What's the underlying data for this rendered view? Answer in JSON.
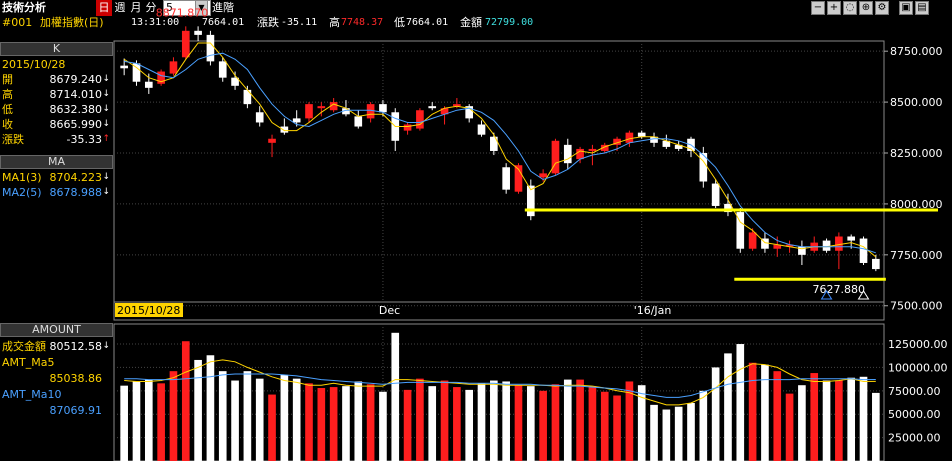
{
  "top": {
    "title": "技術分析",
    "periods": [
      "日",
      "週",
      "月",
      "分"
    ],
    "selected_period": "日",
    "interval_value": "5",
    "advanced_label": "進階",
    "icons": [
      "minus-icon",
      "plus-icon",
      "zoom-out-icon",
      "zoom-in-icon",
      "settings-icon",
      "save-icon",
      "print-icon"
    ]
  },
  "info": {
    "code": "#001",
    "name": "加權指數(日)",
    "time": "13:31:00",
    "last": "7664.01",
    "change_label": "漲跌",
    "change": "-35.11",
    "high_label": "高",
    "high": "7748.37",
    "low_label": "低",
    "low": "7664.01",
    "amount_label": "金額",
    "amount": "72799.00"
  },
  "left": {
    "k_header": "K",
    "date": "2015/10/28",
    "ohlc": [
      {
        "label": "開",
        "value": "8679.240",
        "arrow": "↓"
      },
      {
        "label": "高",
        "value": "8714.010",
        "arrow": "↓"
      },
      {
        "label": "低",
        "value": "8632.380",
        "arrow": "↓"
      },
      {
        "label": "收",
        "value": "8665.990",
        "arrow": "↓"
      }
    ],
    "change_label": "漲跌",
    "change_value": "-35.33",
    "change_arrow": "↑",
    "ma_header": "MA",
    "ma1_label": "MA1(3)",
    "ma1_value": "8704.223",
    "ma1_arrow": "↓",
    "ma2_label": "MA2(5)",
    "ma2_value": "8678.988",
    "ma2_arrow": "↓",
    "amount_header": "AMOUNT",
    "amount_label": "成交金額",
    "amount_value": "80512.58",
    "amount_arrow": "↓",
    "ma5_label": "AMT_Ma5",
    "ma5_value": "85038.86",
    "ma10_label": "AMT_Ma10",
    "ma10_value": "87069.91"
  },
  "colors": {
    "up": "#ff1e1e",
    "down": "#ffffff",
    "ma1": "#ffd400",
    "ma2": "#4aa0ff",
    "grid": "#444444",
    "support": "#ffff00"
  },
  "chart_data": {
    "type": "candlestick",
    "price_ticks": [
      "8750.000",
      "8500.000",
      "8250.000",
      "8000.000",
      "7750.000",
      "7500.000"
    ],
    "price_tick_values": [
      8750,
      8500,
      8250,
      8000,
      7750,
      7500
    ],
    "price_range": [
      7430,
      8800
    ],
    "date_labels": [
      "2015/10/28",
      "Dec",
      "'16/Jan"
    ],
    "max_label": "8871.870",
    "min_label": "7627.880",
    "support_levels": [
      7970,
      7630
    ],
    "candles": [
      {
        "o": 8679,
        "h": 8714,
        "l": 8632,
        "c": 8666
      },
      {
        "o": 8690,
        "h": 8705,
        "l": 8580,
        "c": 8600
      },
      {
        "o": 8600,
        "h": 8640,
        "l": 8540,
        "c": 8570
      },
      {
        "o": 8590,
        "h": 8660,
        "l": 8580,
        "c": 8650
      },
      {
        "o": 8640,
        "h": 8720,
        "l": 8630,
        "c": 8700
      },
      {
        "o": 8720,
        "h": 8872,
        "l": 8710,
        "c": 8850
      },
      {
        "o": 8850,
        "h": 8872,
        "l": 8800,
        "c": 8830
      },
      {
        "o": 8830,
        "h": 8850,
        "l": 8680,
        "c": 8700
      },
      {
        "o": 8700,
        "h": 8720,
        "l": 8600,
        "c": 8620
      },
      {
        "o": 8620,
        "h": 8650,
        "l": 8560,
        "c": 8580
      },
      {
        "o": 8560,
        "h": 8580,
        "l": 8470,
        "c": 8490
      },
      {
        "o": 8450,
        "h": 8480,
        "l": 8380,
        "c": 8400
      },
      {
        "o": 8300,
        "h": 8340,
        "l": 8230,
        "c": 8320
      },
      {
        "o": 8380,
        "h": 8420,
        "l": 8340,
        "c": 8350
      },
      {
        "o": 8420,
        "h": 8460,
        "l": 8380,
        "c": 8400
      },
      {
        "o": 8420,
        "h": 8500,
        "l": 8400,
        "c": 8490
      },
      {
        "o": 8470,
        "h": 8500,
        "l": 8430,
        "c": 8480
      },
      {
        "o": 8460,
        "h": 8520,
        "l": 8450,
        "c": 8500
      },
      {
        "o": 8470,
        "h": 8510,
        "l": 8430,
        "c": 8440
      },
      {
        "o": 8430,
        "h": 8460,
        "l": 8370,
        "c": 8380
      },
      {
        "o": 8420,
        "h": 8500,
        "l": 8400,
        "c": 8490
      },
      {
        "o": 8490,
        "h": 8510,
        "l": 8430,
        "c": 8450
      },
      {
        "o": 8450,
        "h": 8470,
        "l": 8260,
        "c": 8310
      },
      {
        "o": 8360,
        "h": 8400,
        "l": 8340,
        "c": 8390
      },
      {
        "o": 8370,
        "h": 8470,
        "l": 8360,
        "c": 8460
      },
      {
        "o": 8480,
        "h": 8500,
        "l": 8460,
        "c": 8470
      },
      {
        "o": 8440,
        "h": 8480,
        "l": 8390,
        "c": 8470
      },
      {
        "o": 8480,
        "h": 8520,
        "l": 8470,
        "c": 8490
      },
      {
        "o": 8480,
        "h": 8490,
        "l": 8400,
        "c": 8420
      },
      {
        "o": 8390,
        "h": 8410,
        "l": 8330,
        "c": 8340
      },
      {
        "o": 8330,
        "h": 8350,
        "l": 8240,
        "c": 8260
      },
      {
        "o": 8180,
        "h": 8200,
        "l": 8050,
        "c": 8070
      },
      {
        "o": 8060,
        "h": 8200,
        "l": 8050,
        "c": 8190
      },
      {
        "o": 8090,
        "h": 8120,
        "l": 7920,
        "c": 7940
      },
      {
        "o": 8130,
        "h": 8170,
        "l": 8110,
        "c": 8150
      },
      {
        "o": 8150,
        "h": 8320,
        "l": 8140,
        "c": 8310
      },
      {
        "o": 8290,
        "h": 8320,
        "l": 8170,
        "c": 8200
      },
      {
        "o": 8220,
        "h": 8280,
        "l": 8200,
        "c": 8270
      },
      {
        "o": 8260,
        "h": 8290,
        "l": 8190,
        "c": 8270
      },
      {
        "o": 8260,
        "h": 8300,
        "l": 8250,
        "c": 8290
      },
      {
        "o": 8290,
        "h": 8330,
        "l": 8260,
        "c": 8320
      },
      {
        "o": 8300,
        "h": 8360,
        "l": 8280,
        "c": 8350
      },
      {
        "o": 8350,
        "h": 8360,
        "l": 8320,
        "c": 8330
      },
      {
        "o": 8330,
        "h": 8350,
        "l": 8280,
        "c": 8300
      },
      {
        "o": 8310,
        "h": 8340,
        "l": 8270,
        "c": 8280
      },
      {
        "o": 8290,
        "h": 8310,
        "l": 8260,
        "c": 8270
      },
      {
        "o": 8320,
        "h": 8330,
        "l": 8230,
        "c": 8260
      },
      {
        "o": 8250,
        "h": 8280,
        "l": 8080,
        "c": 8110
      },
      {
        "o": 8100,
        "h": 8120,
        "l": 7980,
        "c": 7990
      },
      {
        "o": 8000,
        "h": 8050,
        "l": 7940,
        "c": 7960
      },
      {
        "o": 7960,
        "h": 7980,
        "l": 7760,
        "c": 7780
      },
      {
        "o": 7780,
        "h": 7880,
        "l": 7770,
        "c": 7860
      },
      {
        "o": 7830,
        "h": 7860,
        "l": 7760,
        "c": 7780
      },
      {
        "o": 7780,
        "h": 7840,
        "l": 7740,
        "c": 7800
      },
      {
        "o": 7790,
        "h": 7820,
        "l": 7760,
        "c": 7800
      },
      {
        "o": 7790,
        "h": 7820,
        "l": 7700,
        "c": 7750
      },
      {
        "o": 7770,
        "h": 7840,
        "l": 7760,
        "c": 7810
      },
      {
        "o": 7820,
        "h": 7830,
        "l": 7760,
        "c": 7770
      },
      {
        "o": 7770,
        "h": 7860,
        "l": 7680,
        "c": 7840
      },
      {
        "o": 7840,
        "h": 7850,
        "l": 7780,
        "c": 7820
      },
      {
        "o": 7830,
        "h": 7840,
        "l": 7700,
        "c": 7710
      },
      {
        "o": 7730,
        "h": 7750,
        "l": 7670,
        "c": 7680
      }
    ],
    "ma1": [
      8710,
      8670,
      8620,
      8600,
      8620,
      8710,
      8790,
      8790,
      8720,
      8630,
      8560,
      8490,
      8400,
      8360,
      8360,
      8400,
      8450,
      8490,
      8470,
      8430,
      8440,
      8440,
      8380,
      8380,
      8390,
      8440,
      8470,
      8480,
      8470,
      8420,
      8340,
      8220,
      8170,
      8070,
      8100,
      8200,
      8220,
      8260,
      8250,
      8280,
      8300,
      8320,
      8330,
      8330,
      8310,
      8290,
      8270,
      8210,
      8120,
      8020,
      7910,
      7870,
      7810,
      7800,
      7790,
      7780,
      7790,
      7790,
      7800,
      7810,
      7790,
      7740
    ],
    "ma2": [
      8700,
      8690,
      8660,
      8630,
      8620,
      8660,
      8710,
      8730,
      8740,
      8710,
      8660,
      8570,
      8490,
      8430,
      8390,
      8380,
      8410,
      8440,
      8460,
      8460,
      8460,
      8450,
      8420,
      8400,
      8400,
      8420,
      8440,
      8460,
      8470,
      8450,
      8410,
      8340,
      8260,
      8160,
      8120,
      8140,
      8170,
      8220,
      8240,
      8250,
      8270,
      8300,
      8310,
      8320,
      8320,
      8310,
      8290,
      8240,
      8180,
      8090,
      7990,
      7920,
      7860,
      7820,
      7800,
      7790,
      7790,
      7790,
      7790,
      7790,
      7780,
      7760
    ],
    "amount_ticks": [
      "125000.00",
      "100000.00",
      "75000.00",
      "50000.00",
      "25000.00"
    ],
    "amount_tick_values": [
      125000,
      100000,
      75000,
      50000,
      25000
    ],
    "amount_range": [
      0,
      140000
    ],
    "amounts": [
      80513,
      85000,
      87000,
      83000,
      96000,
      128000,
      108000,
      113000,
      96000,
      86000,
      96000,
      88000,
      71000,
      92000,
      88000,
      83000,
      78000,
      79000,
      80000,
      85000,
      82000,
      74000,
      137000,
      76000,
      88000,
      80000,
      86000,
      79000,
      76000,
      83000,
      86000,
      85000,
      81000,
      80000,
      75000,
      82000,
      87000,
      87000,
      80000,
      74000,
      70000,
      85000,
      81000,
      60000,
      55000,
      58000,
      62000,
      75000,
      100000,
      115000,
      125000,
      105000,
      103000,
      96000,
      72000,
      81000,
      94000,
      86000,
      86000,
      89000,
      90000,
      72799
    ],
    "amt_ma5": [
      86000,
      85000,
      85000,
      86000,
      89000,
      95000,
      100000,
      106000,
      108000,
      106000,
      100000,
      95000,
      90000,
      86000,
      84000,
      81000,
      81000,
      83000,
      81000,
      80000,
      80000,
      80000,
      87000,
      87000,
      86000,
      85000,
      84000,
      83000,
      82000,
      82000,
      82000,
      81000,
      81000,
      81000,
      81000,
      80000,
      81000,
      81000,
      80000,
      78000,
      75000,
      73000,
      68000,
      64000,
      60000,
      60000,
      62000,
      68000,
      78000,
      90000,
      98000,
      104000,
      103000,
      100000,
      93000,
      87000,
      85000,
      85000,
      86000,
      88000,
      85000,
      85039
    ],
    "amt_ma10": [
      88000,
      88000,
      87000,
      87000,
      87000,
      88000,
      89000,
      90000,
      92000,
      93000,
      93000,
      93000,
      93000,
      92000,
      91000,
      89000,
      87000,
      86000,
      85000,
      84000,
      83000,
      82000,
      83000,
      84000,
      84000,
      84000,
      84000,
      84000,
      83000,
      83000,
      83000,
      82000,
      82000,
      82000,
      81000,
      81000,
      80000,
      80000,
      79000,
      78000,
      77000,
      75000,
      72000,
      70000,
      68000,
      68000,
      70000,
      74000,
      78000,
      82000,
      84000,
      86000,
      87000,
      87000,
      87000,
      88000,
      88000,
      88000,
      88000,
      88000,
      87000,
      87070
    ]
  }
}
